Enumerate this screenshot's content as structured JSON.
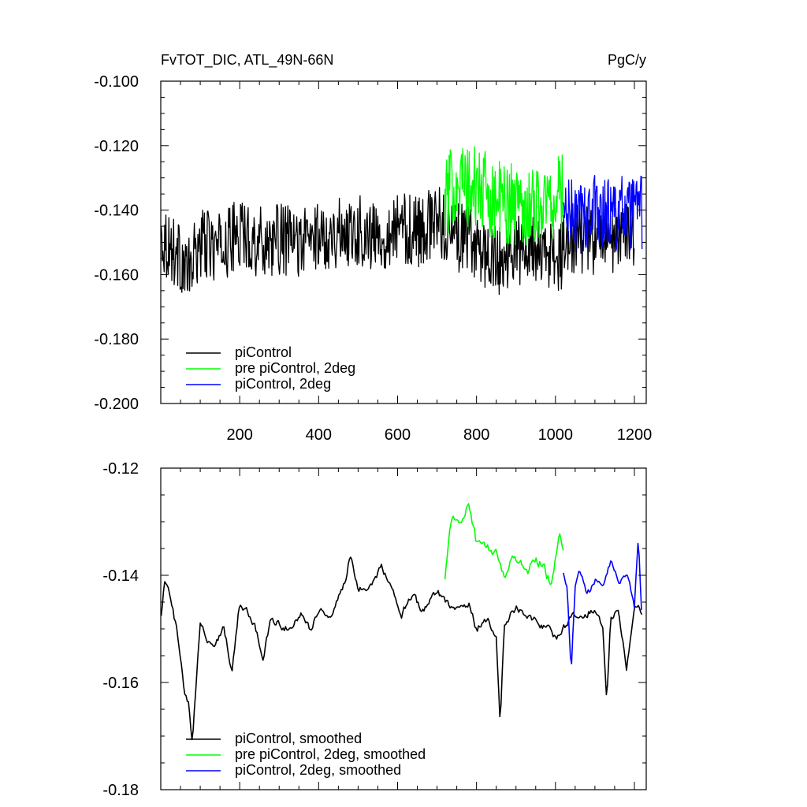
{
  "chart_data": [
    {
      "type": "line",
      "title": "FvTOT_DIC, ATL_49N-66N",
      "units": "PgC/y",
      "xlabel": "",
      "ylabel": "",
      "xlim": [
        0,
        1230
      ],
      "ylim": [
        -0.2,
        -0.1
      ],
      "x_ticks": [
        200,
        400,
        600,
        800,
        1000,
        1200
      ],
      "y_ticks": [
        -0.1,
        -0.12,
        -0.14,
        -0.16,
        -0.18,
        -0.2
      ],
      "y_tick_labels": [
        "-0.100",
        "-0.120",
        "-0.140",
        "-0.160",
        "-0.180",
        "-0.200"
      ],
      "grid": false,
      "legend_position": "bottom-left",
      "noise_per_point": true,
      "series": [
        {
          "name": "piControl",
          "color": "#000000",
          "x": [
            1,
            50,
            70,
            100,
            150,
            200,
            250,
            300,
            350,
            400,
            450,
            500,
            550,
            600,
            650,
            700,
            750,
            800,
            850,
            900,
            950,
            1000,
            1050,
            1100,
            1150,
            1200
          ],
          "values": [
            -0.148,
            -0.155,
            -0.16,
            -0.15,
            -0.152,
            -0.147,
            -0.15,
            -0.149,
            -0.15,
            -0.148,
            -0.147,
            -0.146,
            -0.149,
            -0.145,
            -0.147,
            -0.143,
            -0.148,
            -0.151,
            -0.156,
            -0.153,
            -0.152,
            -0.156,
            -0.148,
            -0.15,
            -0.149,
            -0.146
          ],
          "amplitude": 0.011
        },
        {
          "name": "pre piControl, 2deg",
          "color": "#00ff00",
          "x": [
            720,
            750,
            780,
            800,
            850,
            900,
            950,
            1000,
            1020
          ],
          "values": [
            -0.137,
            -0.13,
            -0.134,
            -0.133,
            -0.137,
            -0.138,
            -0.138,
            -0.137,
            -0.134
          ],
          "amplitude": 0.013
        },
        {
          "name": "piControl, 2deg",
          "color": "#0000ff",
          "x": [
            1020,
            1060,
            1100,
            1150,
            1200,
            1220
          ],
          "values": [
            -0.141,
            -0.143,
            -0.14,
            -0.141,
            -0.142,
            -0.141
          ],
          "amplitude": 0.012
        }
      ]
    },
    {
      "type": "line",
      "title": "",
      "xlabel": "",
      "ylabel": "",
      "xlim": [
        0,
        1230
      ],
      "ylim": [
        -0.18,
        -0.12
      ],
      "x_ticks": [
        200,
        400,
        600,
        800,
        1000,
        1200
      ],
      "y_ticks": [
        -0.12,
        -0.14,
        -0.16,
        -0.18
      ],
      "y_tick_labels": [
        "-0.12",
        "-0.14",
        "-0.16",
        "-0.18"
      ],
      "grid": false,
      "legend_position": "bottom-left",
      "noise_per_point": false,
      "series": [
        {
          "name": "piControl, smoothed",
          "color": "#000000",
          "x": [
            1,
            10,
            20,
            40,
            60,
            70,
            80,
            90,
            100,
            120,
            140,
            160,
            180,
            200,
            220,
            240,
            260,
            280,
            300,
            330,
            360,
            380,
            400,
            430,
            450,
            470,
            480,
            500,
            540,
            560,
            590,
            610,
            640,
            660,
            700,
            740,
            780,
            800,
            830,
            850,
            860,
            870,
            900,
            940,
            980,
            1000,
            1020,
            1040,
            1060,
            1080,
            1100,
            1120,
            1130,
            1140,
            1160,
            1180,
            1200,
            1220
          ],
          "values": [
            -0.147,
            -0.141,
            -0.143,
            -0.15,
            -0.162,
            -0.164,
            -0.172,
            -0.16,
            -0.149,
            -0.152,
            -0.153,
            -0.149,
            -0.158,
            -0.145,
            -0.147,
            -0.15,
            -0.155,
            -0.148,
            -0.149,
            -0.15,
            -0.147,
            -0.15,
            -0.146,
            -0.148,
            -0.144,
            -0.141,
            -0.136,
            -0.143,
            -0.141,
            -0.138,
            -0.144,
            -0.147,
            -0.143,
            -0.147,
            -0.143,
            -0.146,
            -0.145,
            -0.15,
            -0.148,
            -0.152,
            -0.168,
            -0.149,
            -0.146,
            -0.148,
            -0.15,
            -0.152,
            -0.15,
            -0.148,
            -0.147,
            -0.147,
            -0.146,
            -0.15,
            -0.163,
            -0.148,
            -0.146,
            -0.158,
            -0.145,
            -0.147
          ],
          "amplitude": 0.0015
        },
        {
          "name": "pre piControl, 2deg, smoothed",
          "color": "#00ff00",
          "x": [
            720,
            740,
            760,
            780,
            800,
            830,
            850,
            870,
            890,
            910,
            930,
            950,
            970,
            990,
            1010,
            1020
          ],
          "values": [
            -0.14,
            -0.128,
            -0.131,
            -0.126,
            -0.134,
            -0.135,
            -0.136,
            -0.14,
            -0.137,
            -0.137,
            -0.139,
            -0.137,
            -0.138,
            -0.142,
            -0.131,
            -0.135
          ],
          "amplitude": 0.002
        },
        {
          "name": "piControl, 2deg, smoothed",
          "color": "#0000ff",
          "x": [
            1020,
            1030,
            1040,
            1050,
            1060,
            1080,
            1100,
            1120,
            1140,
            1160,
            1180,
            1200,
            1210,
            1220
          ],
          "values": [
            -0.139,
            -0.142,
            -0.158,
            -0.142,
            -0.138,
            -0.144,
            -0.141,
            -0.141,
            -0.137,
            -0.141,
            -0.14,
            -0.146,
            -0.132,
            -0.15
          ],
          "amplitude": 0.0015
        }
      ]
    }
  ]
}
